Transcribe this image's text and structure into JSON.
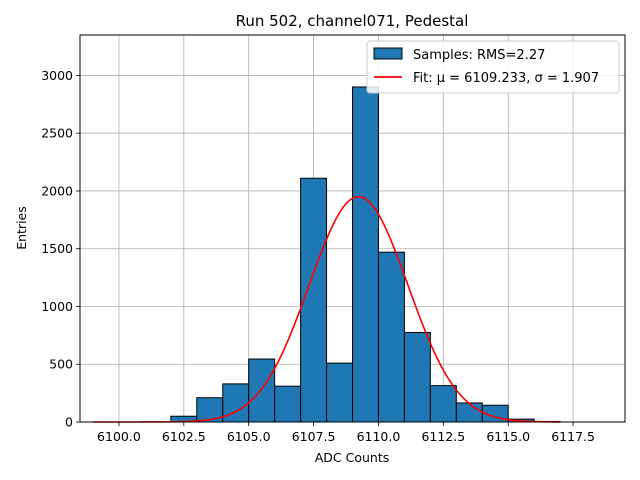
{
  "chart_data": {
    "type": "bar",
    "title": "Run 502, channel071, Pedestal",
    "xlabel": "ADC Counts",
    "ylabel": "Entries",
    "xlim": [
      6098.5,
      6119.5
    ],
    "ylim": [
      0,
      3350
    ],
    "xticks": [
      6100.0,
      6102.5,
      6105.0,
      6107.5,
      6110.0,
      6112.5,
      6115.0,
      6117.5
    ],
    "xtick_labels": [
      "6100.0",
      "6102.5",
      "6105.0",
      "6107.5",
      "6110.0",
      "6112.5",
      "6115.0",
      "6117.5"
    ],
    "yticks": [
      0,
      500,
      1000,
      1500,
      2000,
      2500,
      3000
    ],
    "ytick_labels": [
      "0",
      "500",
      "1000",
      "1500",
      "2000",
      "2500",
      "3000"
    ],
    "grid": true,
    "legend_position": "top-right",
    "histogram": {
      "name": "Samples: RMS=2.27",
      "color": "#1f77b4",
      "bin_width": 1,
      "bin_starts": [
        6099,
        6100,
        6101,
        6102,
        6103,
        6104,
        6105,
        6106,
        6107,
        6108,
        6109,
        6110,
        6111,
        6112,
        6113,
        6114,
        6115,
        6116,
        6117,
        6118
      ],
      "counts": [
        0,
        0,
        0,
        50,
        210,
        330,
        545,
        310,
        2110,
        510,
        2900,
        1470,
        775,
        315,
        165,
        145,
        25,
        5,
        0,
        0
      ]
    },
    "fit": {
      "name": "Fit: μ = 6109.233, σ = 1.907",
      "color": "#ff0000",
      "mu": 6109.233,
      "sigma": 1.907,
      "amplitude": 1950,
      "x_range": [
        6099,
        6117
      ]
    }
  }
}
